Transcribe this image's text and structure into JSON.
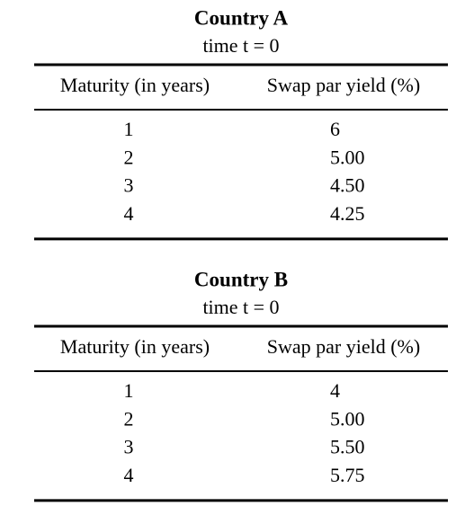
{
  "tables": [
    {
      "title": "Country A",
      "subtitle": "time t = 0",
      "columns": [
        "Maturity (in years)",
        "Swap par yield (%)"
      ],
      "rows": [
        [
          "1",
          "6"
        ],
        [
          "2",
          "5.00"
        ],
        [
          "3",
          "4.50"
        ],
        [
          "4",
          "4.25"
        ]
      ]
    },
    {
      "title": "Country B",
      "subtitle": "time t = 0",
      "columns": [
        "Maturity (in years)",
        "Swap par yield (%)"
      ],
      "rows": [
        [
          "1",
          "4"
        ],
        [
          "2",
          "5.00"
        ],
        [
          "3",
          "5.50"
        ],
        [
          "4",
          "5.75"
        ]
      ]
    }
  ]
}
